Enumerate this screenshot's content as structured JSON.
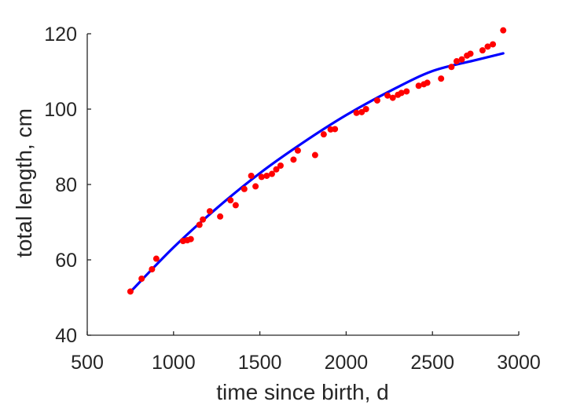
{
  "chart_data": {
    "type": "scatter",
    "xlabel": "time since birth, d",
    "ylabel": "total length, cm",
    "xlim": [
      500,
      3000
    ],
    "ylim": [
      40,
      120
    ],
    "xticks": [
      500,
      1000,
      1500,
      2000,
      2500,
      3000
    ],
    "yticks": [
      40,
      60,
      80,
      100,
      120
    ],
    "grid": false,
    "series": [
      {
        "kind": "scatter",
        "color": "#ff0000",
        "points": [
          [
            750,
            51.6
          ],
          [
            815,
            55.0
          ],
          [
            875,
            57.5
          ],
          [
            900,
            60.3
          ],
          [
            1055,
            65.0
          ],
          [
            1080,
            65.2
          ],
          [
            1100,
            65.5
          ],
          [
            1150,
            69.3
          ],
          [
            1170,
            70.7
          ],
          [
            1210,
            72.9
          ],
          [
            1270,
            71.5
          ],
          [
            1330,
            75.8
          ],
          [
            1360,
            74.5
          ],
          [
            1410,
            78.8
          ],
          [
            1450,
            82.3
          ],
          [
            1475,
            79.5
          ],
          [
            1510,
            82.0
          ],
          [
            1540,
            82.3
          ],
          [
            1570,
            82.8
          ],
          [
            1595,
            84.0
          ],
          [
            1620,
            85.0
          ],
          [
            1695,
            86.6
          ],
          [
            1720,
            89.0
          ],
          [
            1820,
            87.8
          ],
          [
            1870,
            93.3
          ],
          [
            1910,
            94.6
          ],
          [
            1935,
            94.7
          ],
          [
            2060,
            99.0
          ],
          [
            2090,
            99.2
          ],
          [
            2115,
            100.0
          ],
          [
            2180,
            102.3
          ],
          [
            2240,
            103.6
          ],
          [
            2270,
            103.0
          ],
          [
            2300,
            103.8
          ],
          [
            2320,
            104.3
          ],
          [
            2350,
            104.7
          ],
          [
            2420,
            106.2
          ],
          [
            2450,
            106.6
          ],
          [
            2470,
            107.0
          ],
          [
            2550,
            108.1
          ],
          [
            2610,
            111.2
          ],
          [
            2640,
            112.7
          ],
          [
            2670,
            113.2
          ],
          [
            2700,
            114.2
          ],
          [
            2720,
            114.7
          ],
          [
            2790,
            115.6
          ],
          [
            2820,
            116.6
          ],
          [
            2850,
            117.2
          ],
          [
            2910,
            120.9
          ]
        ]
      },
      {
        "kind": "line",
        "color": "#0000ff",
        "points": [
          [
            750,
            51.5
          ],
          [
            1000,
            63.3
          ],
          [
            1250,
            73.7
          ],
          [
            1500,
            83.0
          ],
          [
            1750,
            91.1
          ],
          [
            2000,
            98.4
          ],
          [
            2250,
            104.7
          ],
          [
            2500,
            110.1
          ],
          [
            2750,
            113.0
          ],
          [
            2910,
            114.8
          ]
        ]
      }
    ]
  }
}
